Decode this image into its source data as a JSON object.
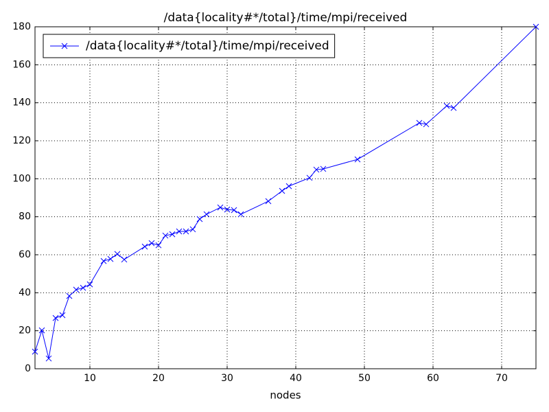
{
  "chart_data": {
    "type": "line",
    "title": "/data{locality#*/total}/time/mpi/received",
    "x_label": "nodes",
    "x": [
      2,
      3,
      4,
      5,
      6,
      7,
      8,
      9,
      10,
      12,
      13,
      14,
      15,
      18,
      19,
      20,
      21,
      22,
      23,
      24,
      25,
      26,
      27,
      29,
      30,
      31,
      32,
      36,
      38,
      39,
      42,
      43,
      44,
      49,
      58,
      59,
      62,
      63,
      75
    ],
    "series": [
      {
        "name": "/data{locality#*/total}/time/mpi/received",
        "color": "#0000ff",
        "values": [
          9,
          20.2,
          5.4,
          26.7,
          28.2,
          38.3,
          41.6,
          42.6,
          44.4,
          56.7,
          57.8,
          60.4,
          57.5,
          64.3,
          66.1,
          65,
          70.1,
          70.8,
          72.3,
          72.3,
          73.4,
          78.8,
          81.3,
          84.9,
          83.8,
          83.5,
          81.3,
          88.2,
          93.6,
          96.1,
          100.5,
          104.8,
          105.2,
          110.2,
          129.4,
          128.7,
          138.4,
          137.3,
          180
        ]
      }
    ],
    "xlim": [
      2,
      75
    ],
    "xticks": [
      10,
      20,
      30,
      40,
      50,
      60,
      70
    ],
    "ylim": [
      0,
      180
    ],
    "yticks": [
      0,
      20,
      40,
      60,
      80,
      100,
      120,
      140,
      160,
      180
    ],
    "grid": true,
    "legend": "upper left"
  }
}
